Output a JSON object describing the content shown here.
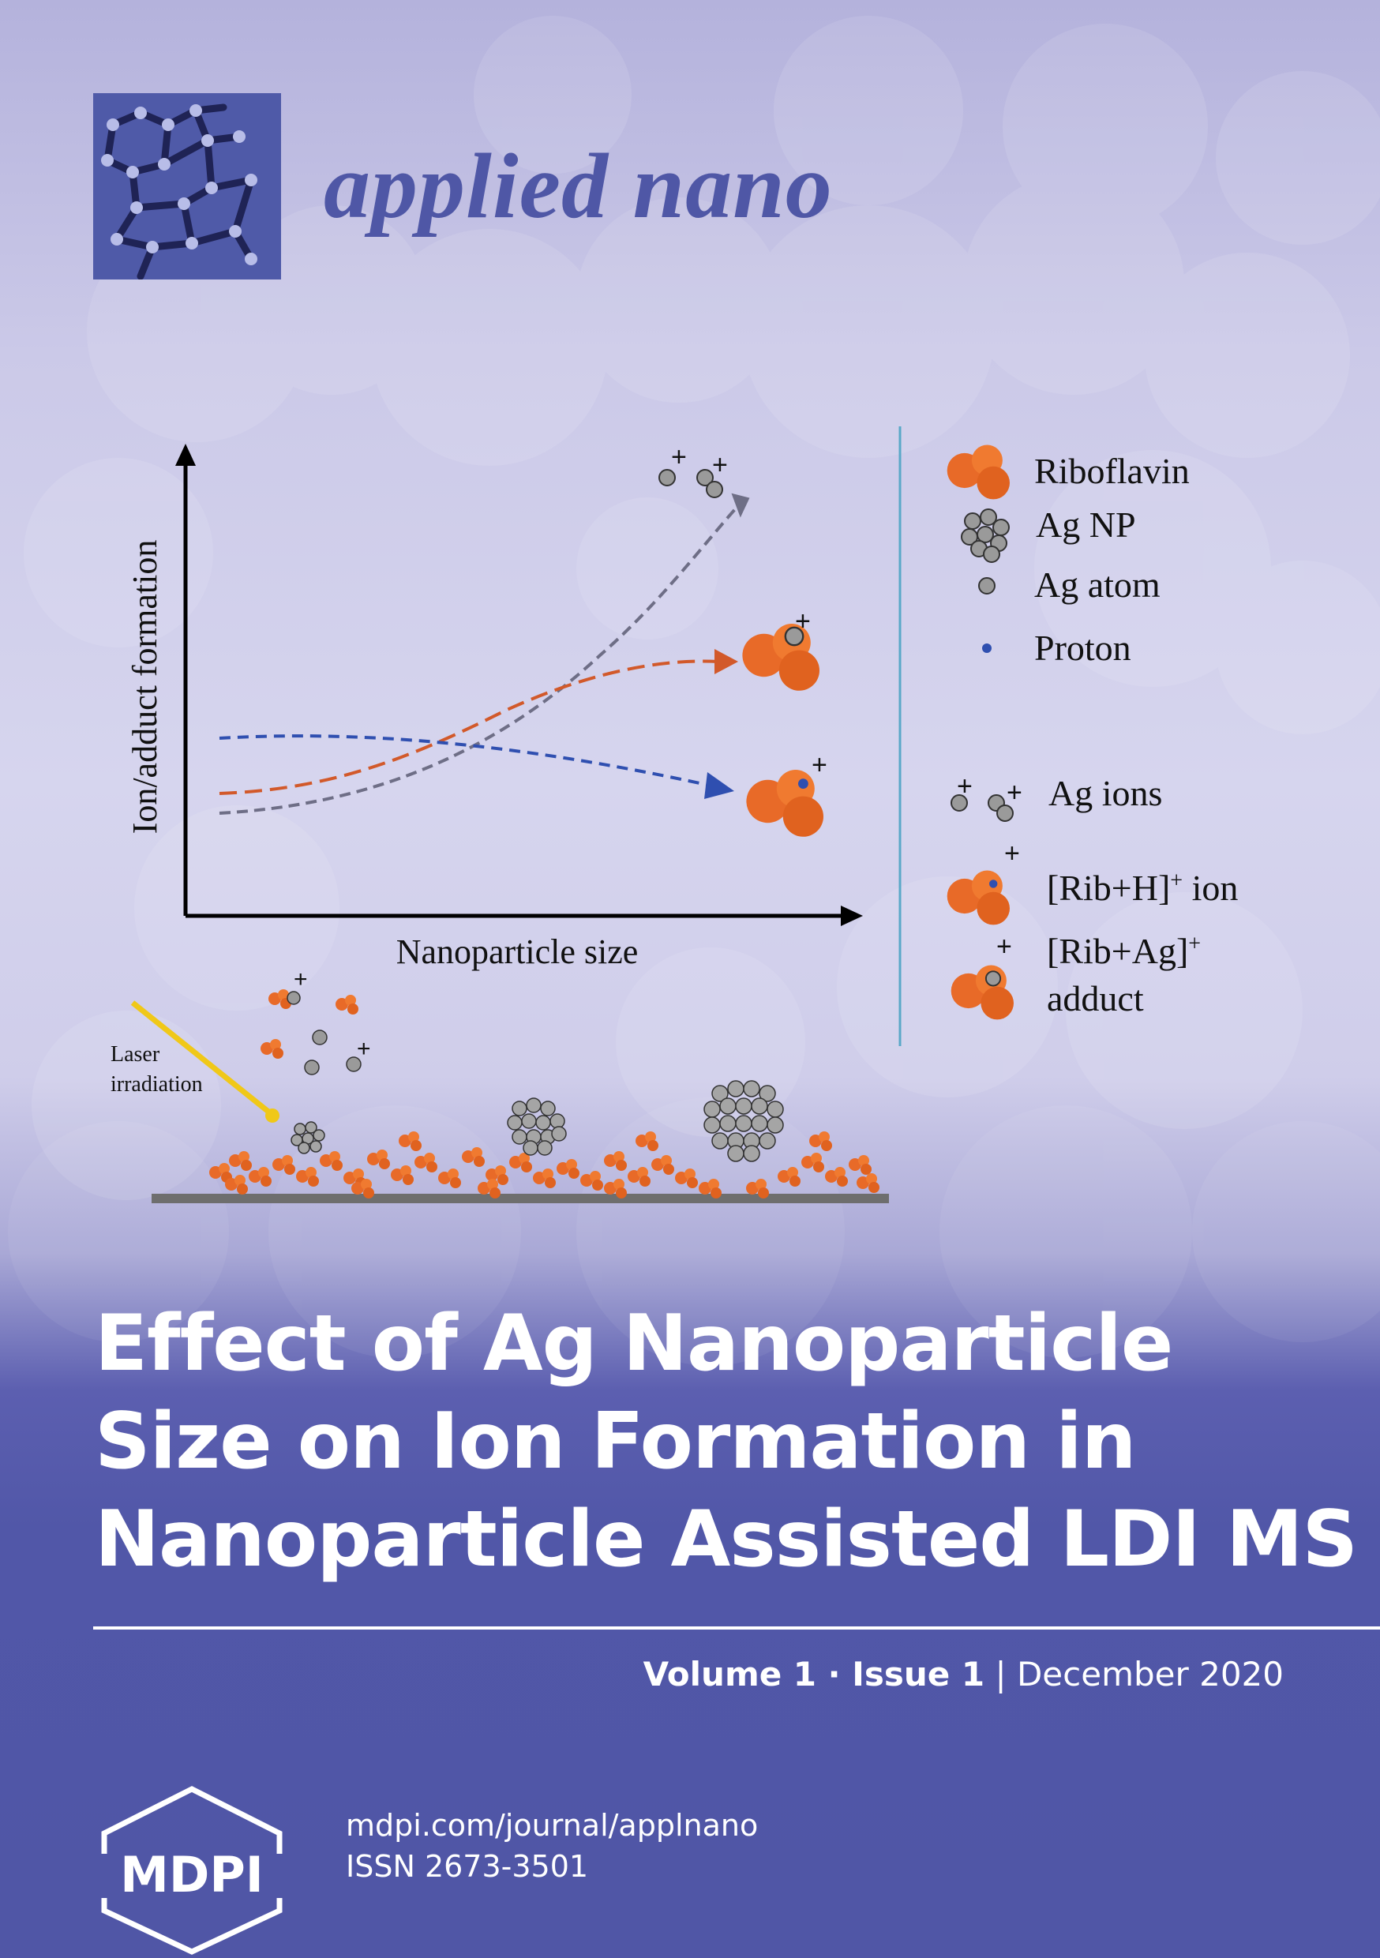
{
  "journal": {
    "name": "applied nano"
  },
  "figure": {
    "y_axis_label": "Ion/adduct formation",
    "x_axis_label": "Nanoparticle size",
    "laser_label_line1": "Laser",
    "laser_label_line2": "irradiation",
    "plus_sign": "+",
    "legend": {
      "riboflavin": "Riboflavin",
      "ag_np": "Ag NP",
      "ag_atom": "Ag atom",
      "proton": "Proton",
      "ag_ions": "Ag ions",
      "rib_h_ion_prefix": "[Rib+H]",
      "rib_h_ion_suffix": " ion",
      "rib_ag_prefix": "[Rib+Ag]",
      "rib_ag_line2": "adduct"
    },
    "colors": {
      "orange": "#e86a28",
      "grey": "#9a9a9a",
      "blue": "#2f4fb0",
      "dark_grey_curve": "#6e6e86"
    }
  },
  "article": {
    "title_line1": "Effect of Ag Nanoparticle",
    "title_line2": "Size on Ion Formation in",
    "title_line3": "Nanoparticle Assisted LDI MS"
  },
  "issue": {
    "volume": "Volume 1",
    "separator": " · ",
    "issue": "Issue 1",
    "bar": " | ",
    "date": "December 2020"
  },
  "publisher": {
    "logo_text": "MDPI",
    "url": "mdpi.com/journal/applnano",
    "issn": "ISSN 2673-3501"
  }
}
